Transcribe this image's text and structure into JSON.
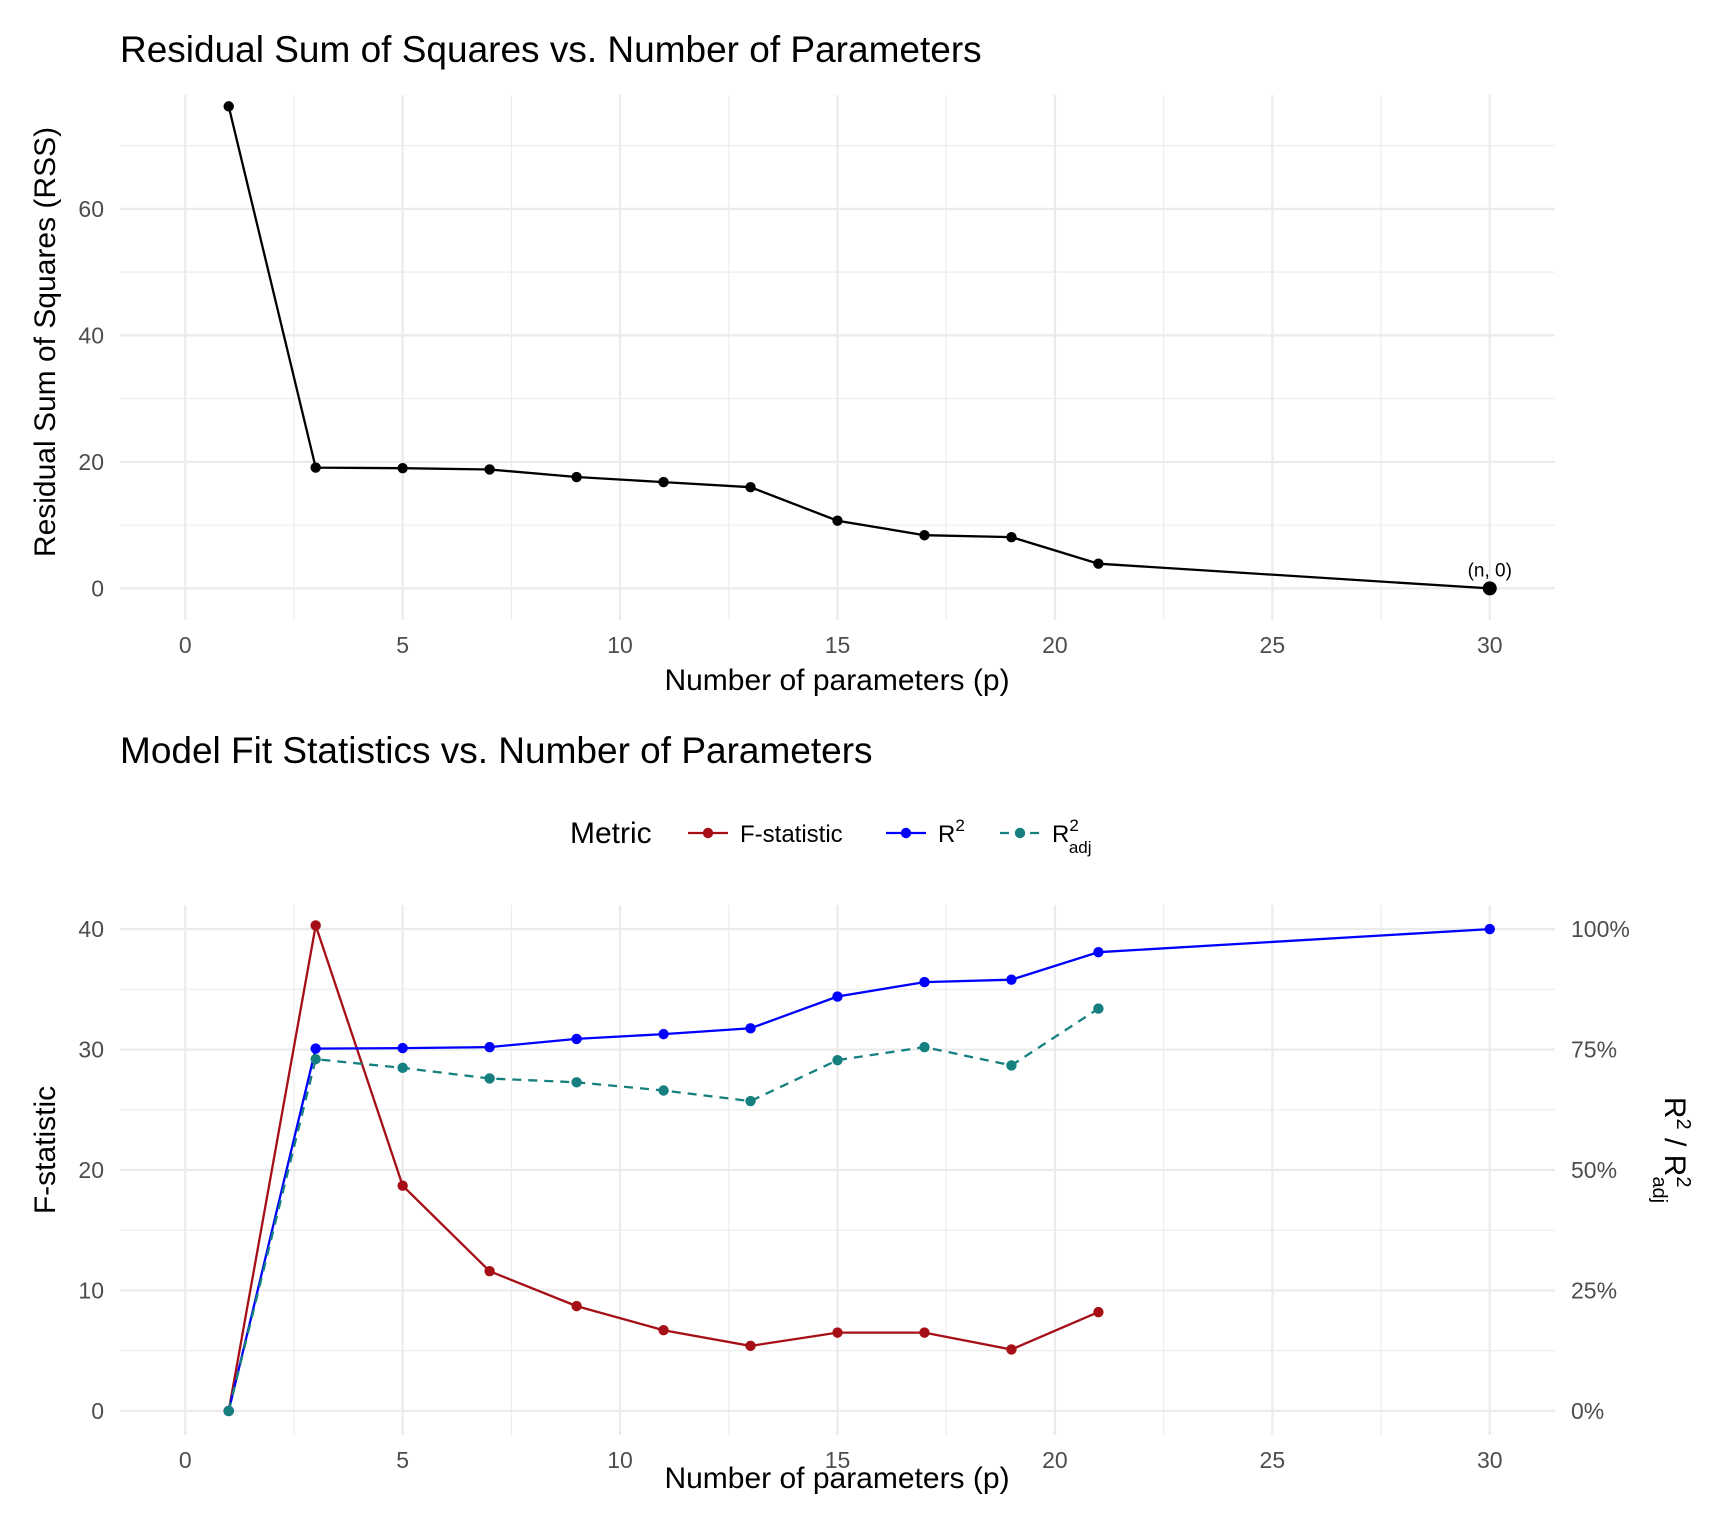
{
  "chart_data": [
    {
      "type": "line",
      "title": "Residual Sum of Squares vs. Number of Parameters",
      "xlabel": "Number of parameters (p)",
      "ylabel": "Residual Sum of Squares (RSS)",
      "xlim": [
        -1.5,
        31.5
      ],
      "ylim": [
        -5,
        78
      ],
      "x_ticks": [
        0,
        5,
        10,
        15,
        20,
        25,
        30
      ],
      "y_ticks": [
        0,
        20,
        40,
        60
      ],
      "grid": true,
      "series": [
        {
          "color": "#000000",
          "x": [
            1,
            3,
            5,
            7,
            9,
            11,
            13,
            15,
            17,
            19,
            21,
            30
          ],
          "y": [
            76.2,
            19.1,
            19.0,
            18.8,
            17.6,
            16.8,
            16.0,
            10.7,
            8.4,
            8.1,
            3.9,
            0
          ]
        }
      ],
      "annotations": [
        {
          "text": "(n, 0)",
          "x": 30,
          "y": 0
        }
      ]
    },
    {
      "type": "line",
      "title": "Model Fit Statistics vs. Number of Parameters",
      "xlabel": "Number of parameters (p)",
      "ylabel": "F-statistic",
      "ylabel_right": {
        "base": "R",
        "sup": "2",
        "mid": " / R",
        "sup2": "2",
        "sub2": "adj"
      },
      "xlim": [
        -1.5,
        31.5
      ],
      "ylim": [
        -2,
        42
      ],
      "x_ticks": [
        0,
        5,
        10,
        15,
        20,
        25,
        30
      ],
      "y_ticks": [
        0,
        10,
        20,
        30,
        40
      ],
      "y_right_ticks": [
        "0%",
        "25%",
        "50%",
        "75%",
        "100%"
      ],
      "y_right_range": [
        0,
        100
      ],
      "grid": true,
      "legend": {
        "title": "Metric",
        "position": "top",
        "entries": [
          {
            "label": "F-statistic",
            "color": "#a50f15",
            "dash": false
          },
          {
            "label": "R",
            "sup": "2",
            "color": "#0000ff",
            "dash": false
          },
          {
            "label": "R",
            "sup": "2",
            "sub": "adj",
            "color": "#167f7f",
            "dash": true
          }
        ]
      },
      "series": [
        {
          "name": "F-statistic",
          "color": "#a50f15",
          "axis": "left",
          "dash": false,
          "x": [
            1,
            3,
            5,
            7,
            9,
            11,
            13,
            15,
            17,
            19,
            21
          ],
          "y": [
            0,
            40.3,
            18.7,
            11.6,
            8.7,
            6.7,
            5.4,
            6.5,
            6.5,
            5.1,
            8.2
          ]
        },
        {
          "name": "R2",
          "color": "#0000ff",
          "axis": "right",
          "dash": false,
          "x": [
            1,
            3,
            5,
            7,
            9,
            11,
            13,
            15,
            17,
            19,
            21,
            30
          ],
          "y": [
            0,
            75.2,
            75.3,
            75.5,
            77.2,
            78.2,
            79.4,
            86.0,
            89.0,
            89.5,
            95.2,
            100
          ]
        },
        {
          "name": "R2 adj",
          "color": "#167f7f",
          "axis": "right",
          "dash": true,
          "x": [
            1,
            3,
            5,
            7,
            9,
            11,
            13,
            15,
            17,
            19,
            21
          ],
          "y": [
            0,
            73.0,
            71.2,
            69.0,
            68.2,
            66.5,
            64.3,
            72.8,
            75.5,
            71.7,
            83.5
          ]
        }
      ]
    }
  ]
}
